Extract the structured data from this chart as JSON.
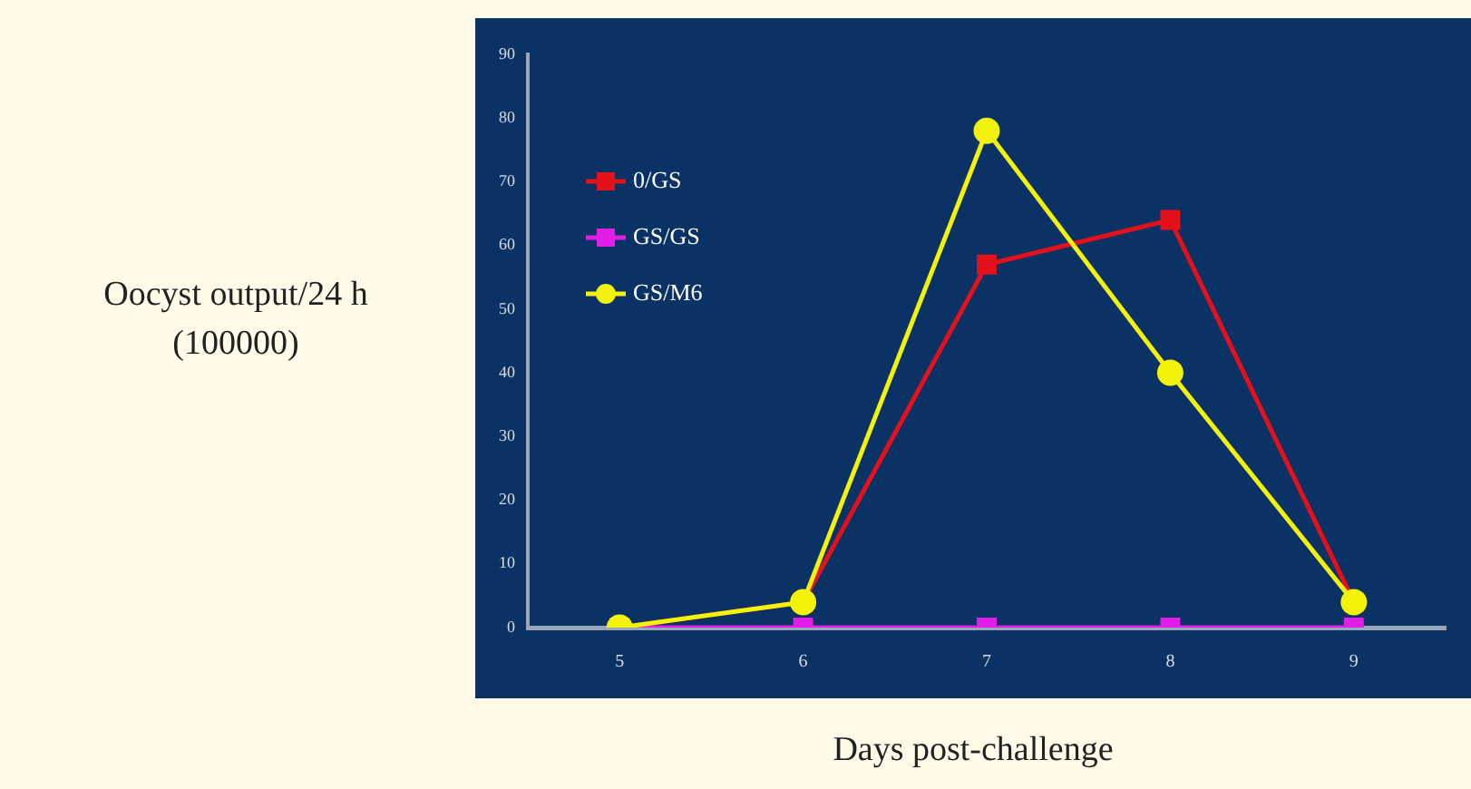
{
  "chart_data": {
    "type": "line",
    "xlabel": "Days post-challenge",
    "ylabel": "Oocyst output/24 h (100000)",
    "categories": [
      "5",
      "6",
      "7",
      "8",
      "9"
    ],
    "series": [
      {
        "name": "0/GS",
        "color": "#e3111b",
        "marker": "square",
        "values": [
          0,
          4,
          57,
          64,
          4
        ]
      },
      {
        "name": "GS/GS",
        "color": "#e01ee8",
        "marker": "square",
        "values": [
          0,
          0,
          0,
          0,
          0
        ]
      },
      {
        "name": "GS/M6",
        "color": "#f2f20a",
        "marker": "circle",
        "values": [
          0,
          4,
          78,
          40,
          4
        ]
      }
    ],
    "ylim": [
      0,
      90
    ],
    "yticks": [
      0,
      10,
      20,
      30,
      40,
      50,
      60,
      70,
      80,
      90
    ],
    "grid": false,
    "legend": "top left"
  }
}
